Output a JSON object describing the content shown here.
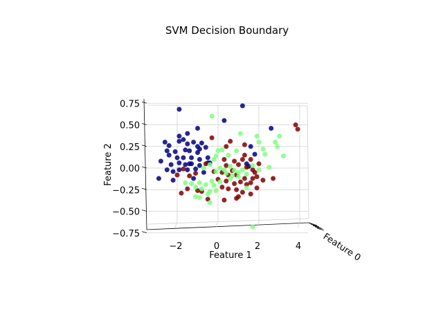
{
  "chart_data": {
    "type": "scatter",
    "title": "SVM Decision Boundary",
    "xlabel": "Feature 1",
    "ylabel": "Feature 2",
    "zlabel": "Feature 0",
    "x_ticks": [
      "−2",
      "0",
      "2",
      "4"
    ],
    "x_tick_values": [
      -2,
      0,
      2,
      4
    ],
    "y_ticks": [
      "−0.75",
      "−0.50",
      "−0.25",
      "0.00",
      "0.25",
      "0.50",
      "0.75"
    ],
    "y_tick_values": [
      -0.75,
      -0.5,
      -0.25,
      0.0,
      0.25,
      0.5,
      0.75
    ],
    "xlim": [
      -3.5,
      4.2
    ],
    "ylim": [
      -0.78,
      0.82
    ],
    "grid": true,
    "series": [
      {
        "color": "#00007f",
        "points": [
          [
            -1.9,
            0.68
          ],
          [
            -1.0,
            0.46
          ],
          [
            -1.5,
            0.4
          ],
          [
            -1.9,
            0.37
          ],
          [
            -2.6,
            0.3
          ],
          [
            -2.4,
            0.26
          ],
          [
            -1.9,
            0.31
          ],
          [
            -1.7,
            0.33
          ],
          [
            -1.5,
            0.28
          ],
          [
            -1.2,
            0.3
          ],
          [
            -0.8,
            0.29
          ],
          [
            -1.0,
            0.25
          ],
          [
            -2.5,
            0.2
          ],
          [
            -2.1,
            0.19
          ],
          [
            -1.6,
            0.21
          ],
          [
            -1.4,
            0.2
          ],
          [
            -1.0,
            0.18
          ],
          [
            -0.9,
            0.22
          ],
          [
            -0.6,
            0.24
          ],
          [
            -2.4,
            0.15
          ],
          [
            -2.0,
            0.12
          ],
          [
            -1.7,
            0.12
          ],
          [
            -1.3,
            0.12
          ],
          [
            -0.9,
            0.1
          ],
          [
            -0.5,
            0.12
          ],
          [
            -2.8,
            0.08
          ],
          [
            -2.3,
            0.04
          ],
          [
            -1.9,
            0.06
          ],
          [
            -1.6,
            0.04
          ],
          [
            -1.3,
            0.05
          ],
          [
            -0.9,
            0.03
          ],
          [
            -2.5,
            -0.02
          ],
          [
            -2.2,
            -0.04
          ],
          [
            -1.9,
            -0.02
          ],
          [
            -1.5,
            -0.02
          ],
          [
            -1.1,
            -0.01
          ],
          [
            -0.5,
            0.06
          ],
          [
            -2.9,
            -0.12
          ],
          [
            -2.2,
            -0.14
          ],
          [
            -1.2,
            -0.12
          ],
          [
            -0.7,
            -0.05
          ],
          [
            -0.4,
            0.06
          ],
          [
            0.3,
            0.55
          ],
          [
            1.2,
            0.72
          ],
          [
            1.6,
            0.25
          ],
          [
            1.8,
            0.16
          ],
          [
            2.6,
            0.46
          ],
          [
            1.4,
            0.05
          ],
          [
            1.5,
            0.02
          ],
          [
            -1.4,
            0.05
          ]
        ]
      },
      {
        "color": "#7f0000",
        "points": [
          [
            -0.3,
            0.35
          ],
          [
            0.6,
            0.31
          ],
          [
            1.3,
            0.27
          ],
          [
            1.3,
            0.15
          ],
          [
            0.3,
            0.1
          ],
          [
            0.8,
            0.08
          ],
          [
            1.0,
            0.04
          ],
          [
            1.2,
            0.1
          ],
          [
            1.6,
            0.1
          ],
          [
            0.4,
            0.03
          ],
          [
            1.4,
            0.01
          ],
          [
            1.7,
            -0.02
          ],
          [
            2.0,
            0.05
          ],
          [
            1.8,
            -0.05
          ],
          [
            -0.6,
            0.05
          ],
          [
            -1.7,
            -0.01
          ],
          [
            -2.0,
            -0.08
          ],
          [
            -1.4,
            -0.09
          ],
          [
            -1.1,
            -0.06
          ],
          [
            -0.2,
            -0.04
          ],
          [
            0.2,
            -0.05
          ],
          [
            0.5,
            -0.08
          ],
          [
            0.9,
            -0.08
          ],
          [
            1.3,
            -0.12
          ],
          [
            1.7,
            -0.12
          ],
          [
            1.9,
            -0.1
          ],
          [
            2.2,
            -0.14
          ],
          [
            2.7,
            -0.12
          ],
          [
            0.0,
            -0.13
          ],
          [
            0.4,
            -0.15
          ],
          [
            0.8,
            -0.18
          ],
          [
            1.1,
            -0.16
          ],
          [
            1.4,
            -0.19
          ],
          [
            1.6,
            -0.17
          ],
          [
            0.2,
            -0.22
          ],
          [
            0.5,
            -0.24
          ],
          [
            0.9,
            -0.25
          ],
          [
            1.2,
            -0.28
          ],
          [
            1.6,
            -0.3
          ],
          [
            -0.8,
            -0.27
          ],
          [
            -1.0,
            -0.26
          ],
          [
            -0.5,
            -0.36
          ],
          [
            0.3,
            -0.37
          ],
          [
            0.9,
            -0.35
          ],
          [
            1.0,
            -0.33
          ],
          [
            3.8,
            0.5
          ],
          [
            3.9,
            0.45
          ],
          [
            0.4,
            0.25
          ],
          [
            0.7,
            -0.03
          ],
          [
            -1.5,
            -0.24
          ],
          [
            -1.8,
            -0.29
          ],
          [
            1.9,
            -0.23
          ]
        ]
      },
      {
        "color": "#7fff7f",
        "points": [
          [
            -0.3,
            0.6
          ],
          [
            1.1,
            0.4
          ],
          [
            1.9,
            0.37
          ],
          [
            3.0,
            0.37
          ],
          [
            2.0,
            0.3
          ],
          [
            2.2,
            0.22
          ],
          [
            2.8,
            0.3
          ],
          [
            2.9,
            0.25
          ],
          [
            2.3,
            0.16
          ],
          [
            3.2,
            0.14
          ],
          [
            1.7,
            0.03
          ],
          [
            2.0,
            -0.02
          ],
          [
            2.5,
            0.01
          ],
          [
            0.0,
            0.2
          ],
          [
            0.5,
            0.15
          ],
          [
            -0.1,
            0.14
          ],
          [
            -0.4,
            0.04
          ],
          [
            -0.7,
            0.0
          ],
          [
            -0.2,
            0.1
          ],
          [
            0.1,
            0.0
          ],
          [
            0.3,
            -0.02
          ],
          [
            0.6,
            0.02
          ],
          [
            0.8,
            -0.03
          ],
          [
            1.0,
            -0.05
          ],
          [
            1.2,
            -0.02
          ],
          [
            -0.1,
            -0.04
          ],
          [
            0.4,
            -0.06
          ],
          [
            0.7,
            -0.09
          ],
          [
            1.0,
            -0.1
          ],
          [
            1.4,
            -0.07
          ],
          [
            -1.3,
            -0.18
          ],
          [
            -0.9,
            -0.17
          ],
          [
            -0.6,
            -0.19
          ],
          [
            -0.3,
            -0.15
          ],
          [
            0.1,
            -0.16
          ],
          [
            0.6,
            -0.12
          ],
          [
            1.4,
            -0.23
          ],
          [
            -1.1,
            -0.22
          ],
          [
            -0.8,
            -0.24
          ],
          [
            -0.4,
            -0.27
          ],
          [
            -0.1,
            -0.26
          ],
          [
            -0.5,
            -0.3
          ],
          [
            -0.9,
            -0.34
          ],
          [
            -1.1,
            -0.33
          ],
          [
            -0.4,
            -0.4
          ],
          [
            1.7,
            -0.68
          ],
          [
            -1.6,
            -0.17
          ],
          [
            0.2,
            0.21
          ],
          [
            0.9,
            0.2
          ],
          [
            -0.2,
            -0.2
          ]
        ]
      }
    ]
  }
}
